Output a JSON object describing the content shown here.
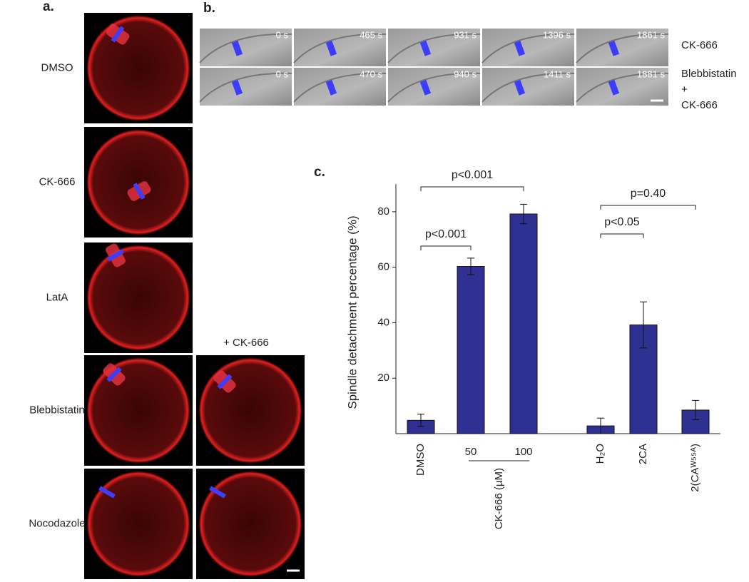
{
  "panel_a": {
    "label": "a.",
    "rows": [
      "DMSO",
      "CK-666",
      "LatA",
      "Blebbistatin",
      "Nocodazole"
    ],
    "column_header": "+ CK-666"
  },
  "panel_b": {
    "label": "b.",
    "rows": [
      {
        "label": [
          "CK-666"
        ],
        "times": [
          "0 s",
          "465 s",
          "931 s",
          "1396 s",
          "1861 s"
        ]
      },
      {
        "label": [
          "Blebbistatin",
          "+",
          "CK-666"
        ],
        "times": [
          "0 s",
          "470 s",
          "940 s",
          "1411 s",
          "1881 s"
        ]
      }
    ]
  },
  "panel_c_label": "c.",
  "chart_data": {
    "type": "bar",
    "ylabel": "Spindle detachment percentage (%)",
    "categories": [
      "DMSO",
      "50",
      "100",
      "H₂O",
      "2CA",
      "2(CAᵂ⁵⁵ᴬ)"
    ],
    "group_label": "CK-666 (µM)",
    "values": [
      4.8,
      60.3,
      79.2,
      2.8,
      39.2,
      8.5
    ],
    "errors": [
      2.2,
      3.0,
      3.5,
      2.8,
      8.3,
      3.5
    ],
    "color": "#2e3192",
    "ylim": [
      0,
      90
    ],
    "yticks": [
      20,
      40,
      60,
      80
    ],
    "annotations": [
      {
        "text": "p<0.001",
        "between": [
          "DMSO",
          "50"
        ]
      },
      {
        "text": "p<0.001",
        "between": [
          "DMSO",
          "100"
        ]
      },
      {
        "text": "p<0.05",
        "between": [
          "H₂O",
          "2CA"
        ]
      },
      {
        "text": "p=0.40",
        "between": [
          "H₂O",
          "2(CAᵂ⁵⁵ᴬ)"
        ]
      }
    ]
  }
}
